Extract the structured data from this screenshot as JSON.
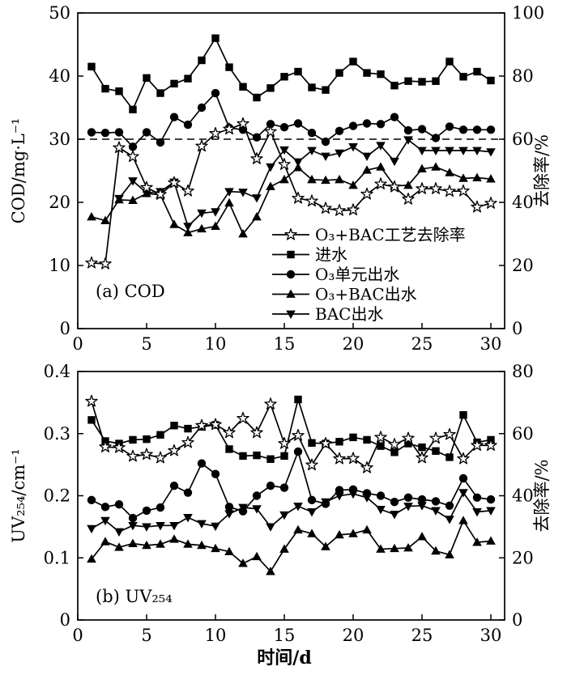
{
  "figure": {
    "x_axis_label": "时间/d",
    "background_color": "#ffffff",
    "ink_color": "#000000"
  },
  "chart_data": [
    {
      "id": "a",
      "type": "line",
      "panel_label": "(a) COD",
      "has_legend": true,
      "x": {
        "min": 0,
        "max": 31,
        "ticks": [
          0,
          5,
          10,
          15,
          20,
          25,
          30
        ]
      },
      "y_left": {
        "label": "COD/mg·L⁻¹",
        "min": 0,
        "max": 50,
        "ticks": [
          0,
          10,
          20,
          30,
          40,
          50
        ]
      },
      "y_right": {
        "label": "去除率/%",
        "min": 0,
        "max": 100,
        "ticks": [
          0,
          20,
          40,
          60,
          80,
          100
        ]
      },
      "reference_line": {
        "axis": "y_left",
        "value": 30,
        "style": "dashed"
      },
      "days": [
        1,
        2,
        3,
        4,
        5,
        6,
        7,
        8,
        9,
        10,
        11,
        12,
        13,
        14,
        15,
        16,
        17,
        18,
        19,
        20,
        21,
        22,
        23,
        24,
        25,
        26,
        27,
        28,
        29,
        30
      ],
      "series": [
        {
          "key": "removal-rate",
          "name": "O₃+BAC工艺去除率",
          "marker": "star-open",
          "axis": "right",
          "values": [
            20.8,
            20.5,
            57.3,
            54.5,
            44.7,
            42.5,
            46.2,
            43.6,
            57.8,
            61.8,
            63.2,
            64.9,
            53.8,
            62.4,
            52,
            41.3,
            40.4,
            38.1,
            37.4,
            37.6,
            42.6,
            45.8,
            44.9,
            41,
            44.3,
            44.3,
            43.5,
            43.6,
            38.5,
            39.7
          ]
        },
        {
          "key": "influent",
          "name": "进水",
          "marker": "square",
          "axis": "left",
          "values": [
            41.5,
            38,
            37.6,
            34.7,
            39.7,
            37.3,
            38.8,
            39.6,
            42.5,
            46,
            41.4,
            38.3,
            36.6,
            38.1,
            39.9,
            40.7,
            38.2,
            37.8,
            40.5,
            42.3,
            40.5,
            40.3,
            38.5,
            39.2,
            39.1,
            39.2,
            42.3,
            39.9,
            40.7,
            39.3
          ]
        },
        {
          "key": "o3-unit-effluent",
          "name": "O₃单元出水",
          "marker": "circle",
          "axis": "left",
          "values": [
            31.1,
            31,
            31.1,
            28.8,
            31.1,
            29.5,
            33.5,
            32.3,
            35,
            37.3,
            31.8,
            31.5,
            30.3,
            32.4,
            31.9,
            32.5,
            31,
            29.6,
            31.3,
            32.1,
            32.5,
            32.4,
            33.5,
            31.4,
            31.6,
            30.2,
            32,
            31.5,
            31.5,
            31.5
          ]
        },
        {
          "key": "o3-bac-effluent",
          "name": "O₃+BAC出水",
          "marker": "triangle-up",
          "axis": "left",
          "values": [
            17.7,
            17.1,
            20.4,
            20.3,
            21.4,
            21.2,
            16.5,
            15.2,
            15.8,
            16.2,
            19.9,
            15,
            17.7,
            22.5,
            23.6,
            25.5,
            23.6,
            23.5,
            23.6,
            22.7,
            25.1,
            25.6,
            22.6,
            22.7,
            25.3,
            25.6,
            24.7,
            23.8,
            23.9,
            23.7
          ]
        },
        {
          "key": "bac-effluent",
          "name": "BAC出水",
          "marker": "triangle-down",
          "axis": "left",
          "values": [
            null,
            null,
            20.6,
            23.4,
            21.5,
            21.7,
            23.2,
            16.2,
            18.3,
            18.5,
            21.7,
            21.6,
            20.7,
            25.6,
            28.3,
            26.4,
            28.2,
            27.3,
            27.8,
            28.8,
            27.3,
            29,
            26.5,
            29.9,
            28.2,
            28.2,
            28.2,
            28.2,
            28.2,
            28
          ]
        }
      ]
    },
    {
      "id": "b",
      "type": "line",
      "panel_label": "(b) UV₂₅₄",
      "has_legend": false,
      "x": {
        "min": 0,
        "max": 31,
        "ticks": [
          0,
          5,
          10,
          15,
          20,
          25,
          30
        ]
      },
      "y_left": {
        "label": "UV₂₅₄/cm⁻¹",
        "min": 0,
        "max": 0.4,
        "ticks": [
          0,
          0.1,
          0.2,
          0.3,
          0.4
        ]
      },
      "y_right": {
        "label": "去除率/%",
        "min": 0,
        "max": 80,
        "ticks": [
          0,
          20,
          40,
          60,
          80
        ]
      },
      "reference_line": null,
      "days": [
        1,
        2,
        3,
        4,
        5,
        6,
        7,
        8,
        9,
        10,
        11,
        12,
        13,
        14,
        15,
        16,
        17,
        18,
        19,
        20,
        21,
        22,
        23,
        24,
        25,
        26,
        27,
        28,
        29,
        30
      ],
      "series": [
        {
          "key": "removal-rate",
          "name": "O₃+BAC工艺去除率",
          "marker": "star-open",
          "axis": "right",
          "values": [
            70.4,
            55.7,
            55.5,
            52.7,
            53.3,
            52.2,
            54.5,
            57.1,
            62.6,
            62.9,
            60.3,
            64.9,
            60.3,
            69.5,
            56.8,
            59.4,
            49.9,
            56.8,
            51.9,
            52,
            49,
            58.8,
            56.5,
            58.5,
            52.2,
            58.5,
            59.7,
            51.9,
            56.2,
            56.2
          ]
        },
        {
          "key": "influent",
          "name": "进水",
          "marker": "square",
          "axis": "left",
          "values": [
            0.322,
            0.288,
            0.284,
            0.29,
            0.291,
            0.298,
            0.313,
            0.308,
            0.311,
            0.314,
            0.275,
            0.264,
            0.265,
            0.259,
            0.264,
            0.355,
            0.285,
            0.284,
            0.287,
            0.294,
            0.29,
            0.28,
            0.27,
            0.284,
            0.278,
            0.272,
            0.262,
            0.33,
            0.286,
            0.29
          ]
        },
        {
          "key": "o3-unit-effluent",
          "name": "O₃单元出水",
          "marker": "circle",
          "axis": "left",
          "values": [
            0.193,
            0.182,
            0.186,
            0.164,
            0.176,
            0.181,
            0.216,
            0.205,
            0.252,
            0.235,
            0.182,
            0.175,
            0.2,
            0.216,
            0.213,
            0.271,
            0.193,
            0.187,
            0.209,
            0.21,
            0.204,
            0.2,
            0.19,
            0.197,
            0.194,
            0.191,
            0.184,
            0.228,
            0.197,
            0.194
          ]
        },
        {
          "key": "o3-bac-effluent",
          "name": "O₃+BAC出水",
          "marker": "triangle-up",
          "axis": "left",
          "values": [
            0.098,
            0.126,
            0.117,
            0.123,
            0.12,
            0.122,
            0.13,
            0.122,
            0.12,
            0.115,
            0.11,
            0.091,
            0.102,
            0.078,
            0.114,
            0.145,
            0.139,
            0.118,
            0.137,
            0.139,
            0.145,
            0.114,
            0.115,
            0.116,
            0.134,
            0.111,
            0.105,
            0.16,
            0.125,
            0.127
          ]
        },
        {
          "key": "bac-effluent",
          "name": "BAC出水",
          "marker": "triangle-down",
          "axis": "left",
          "values": [
            0.147,
            0.16,
            0.142,
            0.152,
            0.15,
            0.152,
            0.152,
            0.165,
            0.155,
            0.151,
            0.171,
            0.181,
            0.179,
            0.15,
            0.169,
            0.183,
            0.174,
            0.19,
            0.2,
            0.203,
            0.197,
            0.178,
            0.17,
            0.183,
            0.184,
            0.176,
            0.162,
            0.205,
            0.174,
            0.176
          ]
        }
      ]
    }
  ]
}
